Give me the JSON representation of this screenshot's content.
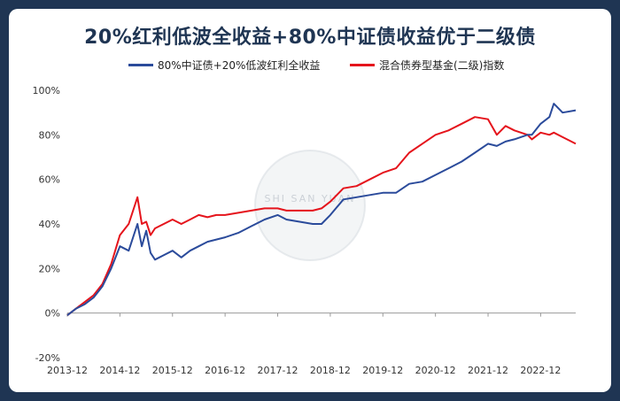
{
  "page": {
    "background": "#1f3553",
    "card_background": "#ffffff",
    "watermark_text": "SHI SAN YUAN"
  },
  "chart_data": {
    "type": "line",
    "title": "20%红利低波全收益+80%中证债收益优于二级债",
    "xlabel": "",
    "ylabel": "",
    "x_tick_labels": [
      "2013-12",
      "2014-12",
      "2015-12",
      "2016-12",
      "2017-12",
      "2018-12",
      "2019-12",
      "2020-12",
      "2021-12",
      "2022-12"
    ],
    "y_tick_labels": [
      "-20%",
      "0%",
      "20%",
      "40%",
      "60%",
      "80%",
      "100%"
    ],
    "ylim": [
      -20,
      100
    ],
    "xlim": [
      "2013-12",
      "2023-08"
    ],
    "grid": false,
    "legend_position": "top",
    "series": [
      {
        "name": "80%中证债+20%低波红利全收益",
        "color": "#2b4b9b",
        "points": [
          [
            "2013-12",
            -1
          ],
          [
            "2014-02",
            2
          ],
          [
            "2014-04",
            4
          ],
          [
            "2014-06",
            7
          ],
          [
            "2014-08",
            12
          ],
          [
            "2014-10",
            20
          ],
          [
            "2014-12",
            30
          ],
          [
            "2015-02",
            28
          ],
          [
            "2015-04",
            40
          ],
          [
            "2015-05",
            30
          ],
          [
            "2015-06",
            37
          ],
          [
            "2015-07",
            27
          ],
          [
            "2015-08",
            24
          ],
          [
            "2015-09",
            25
          ],
          [
            "2015-10",
            26
          ],
          [
            "2015-12",
            28
          ],
          [
            "2016-02",
            25
          ],
          [
            "2016-04",
            28
          ],
          [
            "2016-06",
            30
          ],
          [
            "2016-08",
            32
          ],
          [
            "2016-10",
            33
          ],
          [
            "2016-12",
            34
          ],
          [
            "2017-03",
            36
          ],
          [
            "2017-06",
            39
          ],
          [
            "2017-09",
            42
          ],
          [
            "2017-12",
            44
          ],
          [
            "2018-02",
            42
          ],
          [
            "2018-05",
            41
          ],
          [
            "2018-08",
            40
          ],
          [
            "2018-10",
            40
          ],
          [
            "2018-12",
            44
          ],
          [
            "2019-03",
            51
          ],
          [
            "2019-06",
            52
          ],
          [
            "2019-09",
            53
          ],
          [
            "2019-12",
            54
          ],
          [
            "2020-03",
            54
          ],
          [
            "2020-06",
            58
          ],
          [
            "2020-09",
            59
          ],
          [
            "2020-12",
            62
          ],
          [
            "2021-03",
            65
          ],
          [
            "2021-06",
            68
          ],
          [
            "2021-09",
            72
          ],
          [
            "2021-12",
            76
          ],
          [
            "2022-02",
            75
          ],
          [
            "2022-04",
            77
          ],
          [
            "2022-06",
            78
          ],
          [
            "2022-09",
            80
          ],
          [
            "2022-10",
            80
          ],
          [
            "2022-12",
            85
          ],
          [
            "2023-02",
            88
          ],
          [
            "2023-03",
            94
          ],
          [
            "2023-05",
            90
          ],
          [
            "2023-08",
            91
          ]
        ]
      },
      {
        "name": "混合债券型基金(二级)指数",
        "color": "#e5141c",
        "points": [
          [
            "2013-12",
            -1
          ],
          [
            "2014-02",
            2
          ],
          [
            "2014-04",
            5
          ],
          [
            "2014-06",
            8
          ],
          [
            "2014-08",
            13
          ],
          [
            "2014-10",
            22
          ],
          [
            "2014-12",
            35
          ],
          [
            "2015-02",
            40
          ],
          [
            "2015-04",
            52
          ],
          [
            "2015-05",
            40
          ],
          [
            "2015-06",
            41
          ],
          [
            "2015-07",
            35
          ],
          [
            "2015-08",
            38
          ],
          [
            "2015-09",
            39
          ],
          [
            "2015-10",
            40
          ],
          [
            "2015-12",
            42
          ],
          [
            "2016-02",
            40
          ],
          [
            "2016-04",
            42
          ],
          [
            "2016-06",
            44
          ],
          [
            "2016-08",
            43
          ],
          [
            "2016-10",
            44
          ],
          [
            "2016-12",
            44
          ],
          [
            "2017-03",
            45
          ],
          [
            "2017-06",
            46
          ],
          [
            "2017-09",
            47
          ],
          [
            "2017-12",
            47
          ],
          [
            "2018-02",
            46
          ],
          [
            "2018-05",
            46
          ],
          [
            "2018-08",
            46
          ],
          [
            "2018-10",
            47
          ],
          [
            "2018-12",
            50
          ],
          [
            "2019-03",
            56
          ],
          [
            "2019-06",
            57
          ],
          [
            "2019-09",
            60
          ],
          [
            "2019-12",
            63
          ],
          [
            "2020-03",
            65
          ],
          [
            "2020-06",
            72
          ],
          [
            "2020-09",
            76
          ],
          [
            "2020-12",
            80
          ],
          [
            "2021-03",
            82
          ],
          [
            "2021-06",
            85
          ],
          [
            "2021-09",
            88
          ],
          [
            "2021-12",
            87
          ],
          [
            "2022-02",
            80
          ],
          [
            "2022-04",
            84
          ],
          [
            "2022-06",
            82
          ],
          [
            "2022-09",
            80
          ],
          [
            "2022-10",
            78
          ],
          [
            "2022-12",
            81
          ],
          [
            "2023-02",
            80
          ],
          [
            "2023-03",
            81
          ],
          [
            "2023-05",
            79
          ],
          [
            "2023-08",
            76
          ]
        ]
      }
    ]
  }
}
